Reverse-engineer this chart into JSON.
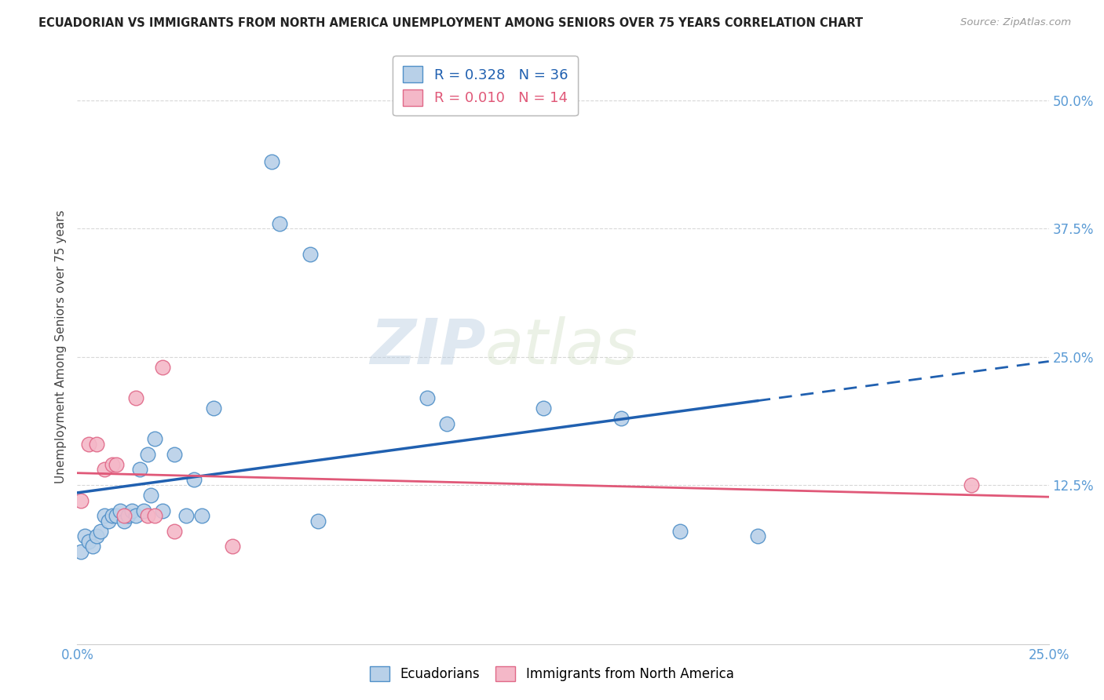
{
  "title": "ECUADORIAN VS IMMIGRANTS FROM NORTH AMERICA UNEMPLOYMENT AMONG SENIORS OVER 75 YEARS CORRELATION CHART",
  "source": "Source: ZipAtlas.com",
  "ylabel": "Unemployment Among Seniors over 75 years",
  "xlim": [
    0.0,
    0.25
  ],
  "ylim": [
    -0.03,
    0.55
  ],
  "xticks": [
    0.0,
    0.05,
    0.1,
    0.15,
    0.2,
    0.25
  ],
  "yticks": [
    0.0,
    0.125,
    0.25,
    0.375,
    0.5
  ],
  "ytick_labels_right": [
    "",
    "12.5%",
    "25.0%",
    "37.5%",
    "50.0%"
  ],
  "xtick_labels": [
    "0.0%",
    "",
    "",
    "",
    "",
    "25.0%"
  ],
  "blue_R": 0.328,
  "blue_N": 36,
  "pink_R": 0.01,
  "pink_N": 14,
  "blue_face_color": "#b8d0e8",
  "blue_edge_color": "#5090c8",
  "pink_face_color": "#f4b8c8",
  "pink_edge_color": "#e06888",
  "blue_line_color": "#2060b0",
  "pink_line_color": "#e05878",
  "blue_x": [
    0.001,
    0.002,
    0.003,
    0.004,
    0.005,
    0.006,
    0.007,
    0.008,
    0.009,
    0.01,
    0.011,
    0.012,
    0.013,
    0.014,
    0.015,
    0.016,
    0.017,
    0.018,
    0.019,
    0.02,
    0.022,
    0.025,
    0.028,
    0.03,
    0.032,
    0.035,
    0.05,
    0.052,
    0.06,
    0.062,
    0.09,
    0.095,
    0.12,
    0.14,
    0.155,
    0.175
  ],
  "blue_y": [
    0.06,
    0.075,
    0.07,
    0.065,
    0.075,
    0.08,
    0.095,
    0.09,
    0.095,
    0.095,
    0.1,
    0.09,
    0.095,
    0.1,
    0.095,
    0.14,
    0.1,
    0.155,
    0.115,
    0.17,
    0.1,
    0.155,
    0.095,
    0.13,
    0.095,
    0.2,
    0.44,
    0.38,
    0.35,
    0.09,
    0.21,
    0.185,
    0.2,
    0.19,
    0.08,
    0.075
  ],
  "pink_x": [
    0.001,
    0.003,
    0.005,
    0.007,
    0.009,
    0.01,
    0.012,
    0.015,
    0.018,
    0.02,
    0.022,
    0.025,
    0.04,
    0.23
  ],
  "pink_y": [
    0.11,
    0.165,
    0.165,
    0.14,
    0.145,
    0.145,
    0.095,
    0.21,
    0.095,
    0.095,
    0.24,
    0.08,
    0.065,
    0.125
  ],
  "watermark_zip": "ZIP",
  "watermark_atlas": "atlas",
  "background_color": "#ffffff",
  "grid_color": "#d8d8d8",
  "tick_color": "#5b9bd5",
  "title_color": "#222222",
  "source_color": "#999999",
  "ylabel_color": "#444444"
}
